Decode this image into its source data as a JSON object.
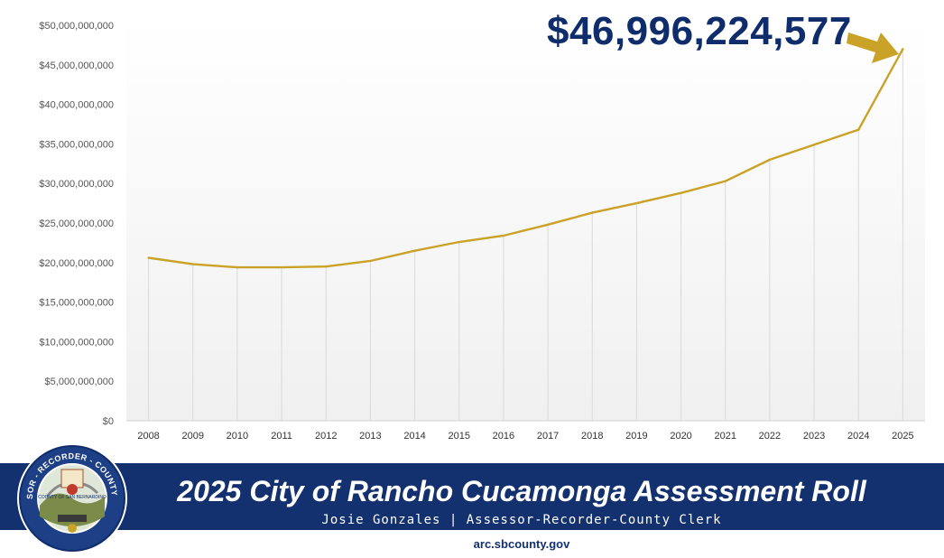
{
  "chart_data": {
    "type": "line",
    "categories": [
      "2008",
      "2009",
      "2010",
      "2011",
      "2012",
      "2013",
      "2014",
      "2015",
      "2016",
      "2017",
      "2018",
      "2019",
      "2020",
      "2021",
      "2022",
      "2023",
      "2024",
      "2025"
    ],
    "series": [
      {
        "values": [
          20600000000,
          19800000000,
          19400000000,
          19400000000,
          19500000000,
          20200000000,
          21500000000,
          22600000000,
          23400000000,
          24800000000,
          26300000000,
          27500000000,
          28800000000,
          30300000000,
          33000000000,
          34900000000,
          36800000000,
          46996224577
        ],
        "color": "#c9a227"
      }
    ],
    "ylim": [
      0,
      50000000000
    ],
    "y_ticks": [
      "$0",
      "$5,000,000,000",
      "$10,000,000,000",
      "$15,000,000,000",
      "$20,000,000,000",
      "$25,000,000,000",
      "$30,000,000,000",
      "$35,000,000,000",
      "$40,000,000,000",
      "$45,000,000,000",
      "$50,000,000,000"
    ],
    "vertical_gridlines": true,
    "annotation": "$46,996,224,577"
  },
  "banner": {
    "title": "2025 City of Rancho Cucamonga Assessment Roll",
    "subtitle": "Josie Gonzales | Assessor-Recorder-County Clerk",
    "url": "arc.sbcounty.gov",
    "seal_text": "ASSESSOR - RECORDER - COUNTY CLERK",
    "seal_center": "COUNTY OF SAN BERNARDINO"
  },
  "colors": {
    "navy": "#13306f",
    "gold": "#c9a227",
    "callout": "#0f2d6b"
  }
}
